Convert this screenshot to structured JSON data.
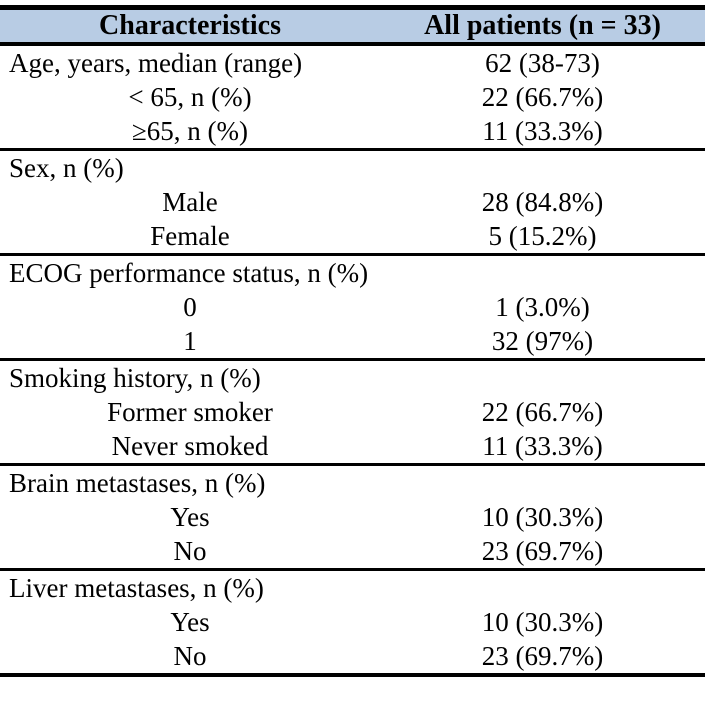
{
  "table": {
    "header": {
      "characteristics": "Characteristics",
      "all_patients": "All patients (n = 33)"
    },
    "colors": {
      "header_bg": "#b8cce4",
      "rule": "#000000",
      "text": "#000000",
      "page_bg": "#ffffff"
    },
    "sections": [
      {
        "rows": [
          {
            "label": "Age, years, median (range)",
            "value": "62 (38-73)",
            "indent": false
          },
          {
            "label": "< 65, n (%)",
            "value": "22 (66.7%)",
            "indent": true
          },
          {
            "label": "≥65, n (%)",
            "value": "11 (33.3%)",
            "indent": true
          }
        ]
      },
      {
        "rows": [
          {
            "label": "Sex, n (%)",
            "value": "",
            "indent": false
          },
          {
            "label": "Male",
            "value": "28 (84.8%)",
            "indent": true
          },
          {
            "label": "Female",
            "value": "5 (15.2%)",
            "indent": true
          }
        ]
      },
      {
        "rows": [
          {
            "label": "ECOG performance status, n (%)",
            "value": "",
            "indent": false
          },
          {
            "label": "0",
            "value": "1 (3.0%)",
            "indent": true
          },
          {
            "label": "1",
            "value": "32 (97%)",
            "indent": true
          }
        ]
      },
      {
        "rows": [
          {
            "label": "Smoking history, n (%)",
            "value": "",
            "indent": false
          },
          {
            "label": "Former smoker",
            "value": "22 (66.7%)",
            "indent": true
          },
          {
            "label": "Never smoked",
            "value": "11 (33.3%)",
            "indent": true
          }
        ]
      },
      {
        "rows": [
          {
            "label": "Brain metastases, n (%)",
            "value": "",
            "indent": false
          },
          {
            "label": "Yes",
            "value": "10 (30.3%)",
            "indent": true
          },
          {
            "label": "No",
            "value": "23 (69.7%)",
            "indent": true
          }
        ]
      },
      {
        "rows": [
          {
            "label": "Liver metastases, n (%)",
            "value": "",
            "indent": false
          },
          {
            "label": "Yes",
            "value": "10 (30.3%)",
            "indent": true
          },
          {
            "label": "No",
            "value": "23 (69.7%)",
            "indent": true
          }
        ]
      }
    ]
  }
}
